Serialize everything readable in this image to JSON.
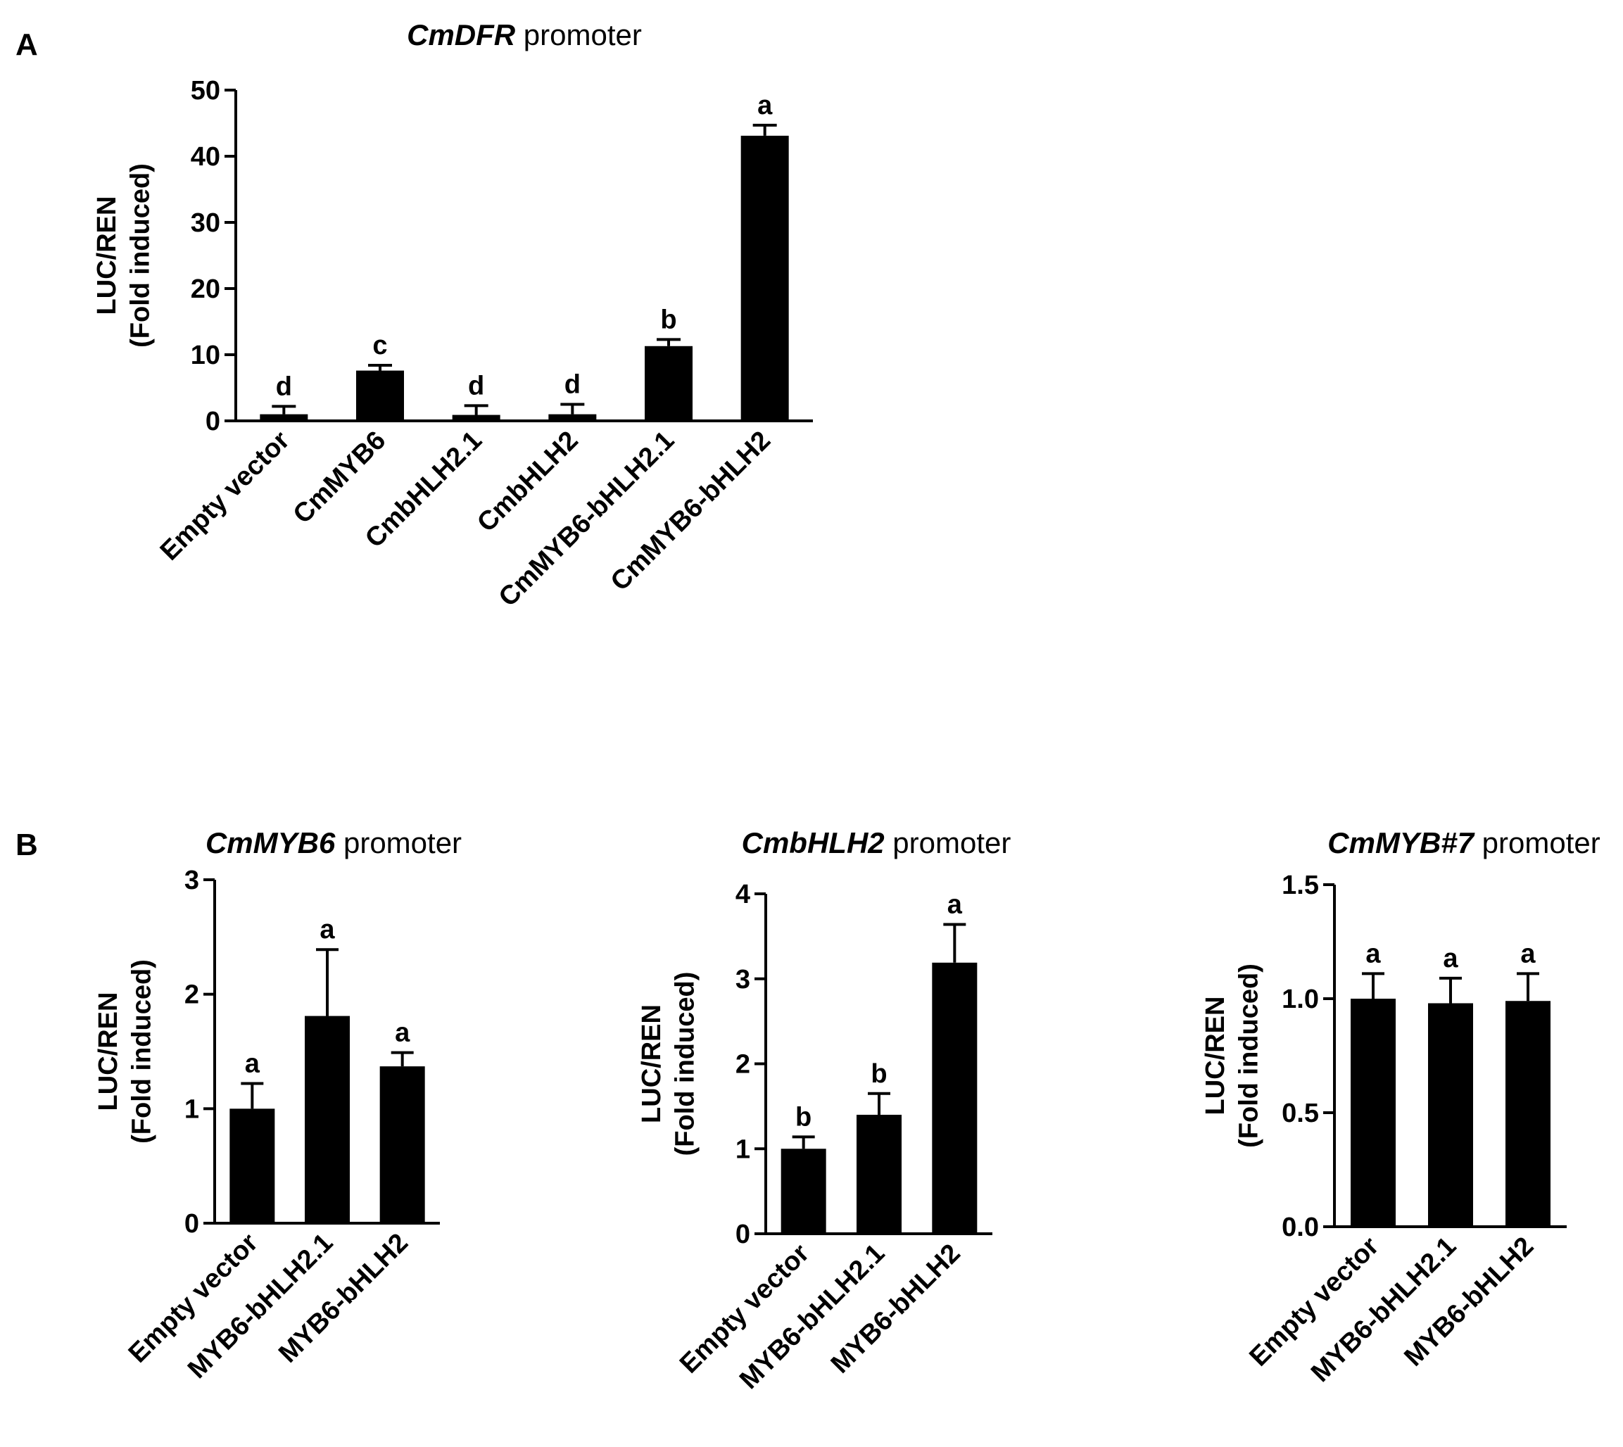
{
  "panel_labels": [
    "A",
    "B"
  ],
  "chart_data": [
    {
      "panel": "A",
      "type": "bar",
      "title_italic": "CmDFR",
      "title_rest": "promoter",
      "ylabel_line1": "LUC/REN",
      "ylabel_line2": "(Fold induced)",
      "ylim": [
        0,
        50
      ],
      "yticks": [
        0,
        10,
        20,
        30,
        40,
        50
      ],
      "ytick_labels": [
        "0",
        "10",
        "20",
        "30",
        "40",
        "50"
      ],
      "categories": [
        "Empty vector",
        "CmMYB6",
        "CmbHLH2.1",
        "CmbHLH2",
        "CmMYB6-bHLH2.1",
        "CmMYB6-bHLH2"
      ],
      "values": [
        1.0,
        7.6,
        0.9,
        1.0,
        11.3,
        43.1
      ],
      "errors": [
        1.2,
        0.8,
        1.4,
        1.5,
        1.0,
        1.6
      ],
      "significance": [
        "d",
        "c",
        "d",
        "d",
        "b",
        "a"
      ],
      "color": "#000000"
    },
    {
      "panel": "B",
      "type": "bar",
      "title_italic": "CmMYB6",
      "title_rest": "promoter",
      "ylabel_line1": "LUC/REN",
      "ylabel_line2": "(Fold induced)",
      "ylim": [
        0,
        3
      ],
      "yticks": [
        0,
        1,
        2,
        3
      ],
      "ytick_labels": [
        "0",
        "1",
        "2",
        "3"
      ],
      "categories": [
        "Empty vector",
        "MYB6-bHLH2.1",
        "MYB6-bHLH2"
      ],
      "values": [
        1.0,
        1.81,
        1.37
      ],
      "errors": [
        0.22,
        0.58,
        0.12
      ],
      "significance": [
        "a",
        "a",
        "a"
      ],
      "color": "#000000"
    },
    {
      "panel": "B",
      "type": "bar",
      "title_italic": "CmbHLH2",
      "title_rest": "promoter",
      "ylabel_line1": "LUC/REN",
      "ylabel_line2": "(Fold induced)",
      "ylim": [
        0,
        4
      ],
      "yticks": [
        0,
        1,
        2,
        3,
        4
      ],
      "ytick_labels": [
        "0",
        "1",
        "2",
        "3",
        "4"
      ],
      "categories": [
        "Empty vector",
        "MYB6-bHLH2.1",
        "MYB6-bHLH2"
      ],
      "values": [
        1.0,
        1.4,
        3.19
      ],
      "errors": [
        0.14,
        0.25,
        0.45
      ],
      "significance": [
        "b",
        "b",
        "a"
      ],
      "color": "#000000"
    },
    {
      "panel": "B",
      "type": "bar",
      "title_italic": "CmMYB#7",
      "title_rest": "promoter",
      "ylabel_line1": "LUC/REN",
      "ylabel_line2": "(Fold induced)",
      "ylim": [
        0,
        1.5
      ],
      "yticks": [
        0,
        0.5,
        1.0,
        1.5
      ],
      "ytick_labels": [
        "0.0",
        "0.5",
        "1.0",
        "1.5"
      ],
      "categories": [
        "Empty vector",
        "MYB6-bHLH2.1",
        "MYB6-bHLH2"
      ],
      "values": [
        1.0,
        0.98,
        0.99
      ],
      "errors": [
        0.11,
        0.11,
        0.12
      ],
      "significance": [
        "a",
        "a",
        "a"
      ],
      "color": "#000000"
    }
  ]
}
